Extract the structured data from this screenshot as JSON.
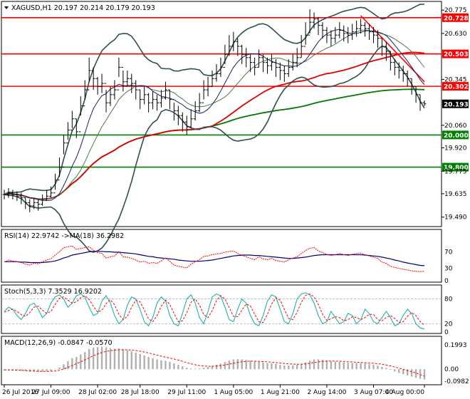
{
  "chart_data": {
    "type": "line",
    "colors": {
      "support": "#008000",
      "resistance": "#ff0000",
      "candle": "#000000",
      "bollinger": "#2f4f4f",
      "ma_short": "#1f1f5f",
      "ma_mid": "#4a7a4a",
      "ma_red": "#e00000",
      "ma_green": "#007a00",
      "rsi": "#ff0000",
      "rsi_ma": "#000080",
      "stoch_main": "#20b2aa",
      "stoch_signal": "#ff0000",
      "macd_hist": "#b0b0b0",
      "macd_signal": "#ff0000"
    },
    "main": {
      "header": "XAGUSD,H1  20.197 20.214 20.179 20.193",
      "menu_icon": "triangle-down-icon",
      "ylim": [
        19.44,
        20.82
      ],
      "y_ticks": [
        "20.775",
        "20.630",
        "20.345",
        "20.060",
        "19.920",
        "19.775",
        "19.635",
        "19.490"
      ],
      "y_tick_values": [
        20.775,
        20.63,
        20.345,
        20.06,
        19.92,
        19.775,
        19.635,
        19.49
      ],
      "levels": [
        {
          "label": "20.728",
          "value": 20.728,
          "kind": "resistance"
        },
        {
          "label": "20.503",
          "value": 20.503,
          "kind": "resistance"
        },
        {
          "label": "20.302",
          "value": 20.302,
          "kind": "resistance"
        },
        {
          "label": "20.000",
          "value": 20.0,
          "kind": "support"
        },
        {
          "label": "19.800",
          "value": 19.8,
          "kind": "support"
        }
      ],
      "current": {
        "label": "20.193",
        "value": 20.193
      },
      "close": [
        19.63,
        19.64,
        19.63,
        19.62,
        19.61,
        19.58,
        19.56,
        19.58,
        19.57,
        19.6,
        19.62,
        19.64,
        19.72,
        19.8,
        19.95,
        20.03,
        20.1,
        20.02,
        20.18,
        20.28,
        20.4,
        20.35,
        20.3,
        20.32,
        20.2,
        20.25,
        20.28,
        20.42,
        20.33,
        20.35,
        20.32,
        20.28,
        20.22,
        20.25,
        20.2,
        20.22,
        20.2,
        20.23,
        20.28,
        20.22,
        20.15,
        20.12,
        20.08,
        20.05,
        20.1,
        20.15,
        20.2,
        20.28,
        20.3,
        20.35,
        20.38,
        20.42,
        20.5,
        20.55,
        20.58,
        20.55,
        20.5,
        20.48,
        20.45,
        20.42,
        20.48,
        20.45,
        20.43,
        20.45,
        20.42,
        20.4,
        20.38,
        20.42,
        20.45,
        20.48,
        20.55,
        20.62,
        20.7,
        20.72,
        20.68,
        20.65,
        20.62,
        20.6,
        20.62,
        20.65,
        20.63,
        20.62,
        20.64,
        20.66,
        20.68,
        20.66,
        20.64,
        20.62,
        20.6,
        20.55,
        20.52,
        20.45,
        20.42,
        20.4,
        20.38,
        20.35,
        20.3,
        20.25,
        20.2,
        20.193
      ],
      "high": [
        19.66,
        19.67,
        19.66,
        19.65,
        19.64,
        19.61,
        19.6,
        19.61,
        19.6,
        19.63,
        19.66,
        19.68,
        19.76,
        19.86,
        20.0,
        20.08,
        20.15,
        20.1,
        20.24,
        20.34,
        20.48,
        20.42,
        20.36,
        20.38,
        20.28,
        20.3,
        20.34,
        20.48,
        20.4,
        20.4,
        20.38,
        20.34,
        20.28,
        20.3,
        20.26,
        20.27,
        20.25,
        20.28,
        20.33,
        20.28,
        20.2,
        20.18,
        20.14,
        20.12,
        20.16,
        20.21,
        20.26,
        20.34,
        20.36,
        20.4,
        20.44,
        20.48,
        20.56,
        20.62,
        20.64,
        20.6,
        20.56,
        20.54,
        20.5,
        20.48,
        20.53,
        20.5,
        20.48,
        20.5,
        20.47,
        20.45,
        20.43,
        20.47,
        20.5,
        20.54,
        20.62,
        20.7,
        20.78,
        20.76,
        20.73,
        20.7,
        20.67,
        20.65,
        20.67,
        20.7,
        20.68,
        20.67,
        20.69,
        20.71,
        20.72,
        20.7,
        20.69,
        20.67,
        20.65,
        20.6,
        20.58,
        20.52,
        20.47,
        20.45,
        20.43,
        20.4,
        20.35,
        20.3,
        20.25,
        20.214
      ],
      "low": [
        19.6,
        19.61,
        19.6,
        19.59,
        19.57,
        19.54,
        19.52,
        19.54,
        19.53,
        19.56,
        19.59,
        19.61,
        19.66,
        19.74,
        19.88,
        19.97,
        20.04,
        19.98,
        20.12,
        20.22,
        20.33,
        20.28,
        20.25,
        20.26,
        20.14,
        20.18,
        20.22,
        20.36,
        20.27,
        20.3,
        20.26,
        20.22,
        20.16,
        20.19,
        20.14,
        20.16,
        20.15,
        20.17,
        20.22,
        20.16,
        20.09,
        20.06,
        20.02,
        20.0,
        20.04,
        20.09,
        20.14,
        20.22,
        20.24,
        20.3,
        20.33,
        20.36,
        20.44,
        20.49,
        20.52,
        20.49,
        20.44,
        20.42,
        20.39,
        20.37,
        20.42,
        20.39,
        20.38,
        20.4,
        20.36,
        20.34,
        20.33,
        20.36,
        20.4,
        20.42,
        20.48,
        20.56,
        20.63,
        20.66,
        20.62,
        20.6,
        20.57,
        20.55,
        20.57,
        20.6,
        20.58,
        20.57,
        20.59,
        20.61,
        20.63,
        20.61,
        20.59,
        20.57,
        20.54,
        20.49,
        20.46,
        20.4,
        20.37,
        20.35,
        20.33,
        20.3,
        20.25,
        20.2,
        20.15,
        20.179
      ]
    },
    "rsi": {
      "header": "RSI(14) 22.9742  ->MA(18) 36.2982",
      "ylim": [
        0,
        100
      ],
      "y_ticks": [
        "70",
        "30",
        "0"
      ],
      "y_tick_values": [
        70,
        30,
        0
      ],
      "values": [
        45,
        50,
        48,
        46,
        44,
        40,
        38,
        42,
        41,
        46,
        50,
        53,
        62,
        70,
        80,
        82,
        84,
        76,
        78,
        80,
        82,
        74,
        68,
        66,
        55,
        58,
        60,
        70,
        58,
        57,
        54,
        50,
        45,
        47,
        42,
        44,
        42,
        48,
        55,
        47,
        38,
        35,
        33,
        31,
        40,
        46,
        51,
        59,
        60,
        63,
        65,
        66,
        69,
        71,
        72,
        66,
        61,
        58,
        54,
        51,
        58,
        53,
        51,
        54,
        49,
        47,
        45,
        51,
        55,
        58,
        66,
        73,
        79,
        80,
        72,
        68,
        64,
        61,
        63,
        66,
        63,
        61,
        64,
        66,
        67,
        63,
        60,
        57,
        54,
        45,
        42,
        35,
        32,
        30,
        28,
        26,
        24,
        23,
        22,
        22.97
      ],
      "ma_values": [
        46,
        46,
        46,
        46,
        45,
        45,
        44,
        44,
        44,
        44,
        45,
        46,
        48,
        51,
        55,
        58,
        62,
        64,
        66,
        68,
        70,
        71,
        71,
        71,
        70,
        70,
        69,
        69,
        68,
        67,
        66,
        65,
        63,
        61,
        59,
        58,
        56,
        55,
        54,
        53,
        52,
        50,
        49,
        48,
        47,
        47,
        47,
        48,
        49,
        50,
        52,
        54,
        56,
        58,
        60,
        61,
        62,
        62,
        62,
        61,
        61,
        60,
        59,
        58,
        57,
        56,
        55,
        54,
        54,
        55,
        56,
        57,
        59,
        61,
        62,
        63,
        63,
        63,
        63,
        63,
        63,
        63,
        63,
        63,
        63,
        62,
        61,
        60,
        59,
        57,
        55,
        53,
        50,
        48,
        45,
        43,
        41,
        39,
        37,
        36.3
      ]
    },
    "stoch": {
      "header": "Stoch(5,3,3) 7.3529 16.9202",
      "ylim": [
        0,
        100
      ],
      "y_ticks": [
        "80",
        "20",
        "0"
      ],
      "y_tick_values": [
        80,
        20,
        0
      ],
      "main": [
        50,
        60,
        55,
        40,
        30,
        45,
        65,
        70,
        55,
        35,
        45,
        70,
        85,
        90,
        80,
        60,
        70,
        88,
        92,
        85,
        60,
        40,
        45,
        75,
        88,
        70,
        40,
        20,
        30,
        65,
        85,
        80,
        55,
        25,
        15,
        35,
        70,
        85,
        75,
        40,
        20,
        15,
        45,
        80,
        90,
        70,
        35,
        20,
        50,
        85,
        92,
        88,
        60,
        30,
        25,
        55,
        80,
        70,
        40,
        20,
        15,
        40,
        75,
        90,
        85,
        55,
        25,
        20,
        45,
        80,
        92,
        95,
        90,
        70,
        40,
        20,
        25,
        50,
        35,
        20,
        25,
        45,
        40,
        20,
        30,
        55,
        45,
        25,
        20,
        35,
        50,
        35,
        15,
        20,
        40,
        55,
        45,
        20,
        10,
        7.35
      ],
      "signal": [
        48,
        52,
        55,
        50,
        42,
        38,
        47,
        60,
        63,
        53,
        45,
        50,
        67,
        82,
        85,
        77,
        70,
        73,
        83,
        88,
        79,
        62,
        48,
        53,
        69,
        78,
        66,
        43,
        30,
        38,
        60,
        77,
        73,
        53,
        32,
        25,
        40,
        63,
        77,
        67,
        45,
        25,
        27,
        47,
        72,
        80,
        65,
        42,
        35,
        52,
        76,
        88,
        80,
        59,
        38,
        37,
        53,
        68,
        63,
        43,
        25,
        23,
        43,
        68,
        83,
        77,
        55,
        33,
        30,
        48,
        72,
        89,
        92,
        85,
        67,
        43,
        28,
        32,
        37,
        35,
        27,
        30,
        37,
        35,
        30,
        35,
        43,
        42,
        30,
        27,
        35,
        40,
        33,
        23,
        25,
        38,
        47,
        40,
        25,
        16.92
      ]
    },
    "macd": {
      "header": "MACD(12,26,9) -0.0847 -0.0570",
      "ylim": [
        -0.115,
        0.245
      ],
      "y_ticks": [
        "0.1993",
        "0.00",
        "-0.0982"
      ],
      "y_tick_values": [
        0.1993,
        0.0,
        -0.0982
      ],
      "hist": [
        -0.01,
        -0.01,
        -0.01,
        -0.012,
        -0.014,
        -0.016,
        -0.02,
        -0.02,
        -0.022,
        -0.02,
        -0.018,
        -0.014,
        -0.002,
        0.015,
        0.04,
        0.065,
        0.09,
        0.1,
        0.12,
        0.14,
        0.165,
        0.175,
        0.18,
        0.183,
        0.178,
        0.172,
        0.168,
        0.17,
        0.162,
        0.155,
        0.146,
        0.136,
        0.124,
        0.112,
        0.1,
        0.09,
        0.08,
        0.072,
        0.068,
        0.06,
        0.048,
        0.036,
        0.024,
        0.012,
        0.006,
        0.004,
        0.006,
        0.012,
        0.018,
        0.026,
        0.036,
        0.046,
        0.058,
        0.07,
        0.08,
        0.082,
        0.08,
        0.076,
        0.07,
        0.062,
        0.06,
        0.055,
        0.05,
        0.048,
        0.042,
        0.036,
        0.03,
        0.03,
        0.032,
        0.036,
        0.044,
        0.056,
        0.07,
        0.08,
        0.08,
        0.077,
        0.072,
        0.066,
        0.062,
        0.06,
        0.056,
        0.052,
        0.05,
        0.05,
        0.05,
        0.047,
        0.042,
        0.036,
        0.03,
        0.02,
        0.01,
        -0.005,
        -0.018,
        -0.03,
        -0.04,
        -0.05,
        -0.06,
        -0.07,
        -0.078,
        -0.0847
      ],
      "signal": [
        -0.005,
        -0.006,
        -0.007,
        -0.008,
        -0.009,
        -0.011,
        -0.013,
        -0.015,
        -0.017,
        -0.018,
        -0.018,
        -0.017,
        -0.014,
        -0.008,
        0.002,
        0.015,
        0.03,
        0.045,
        0.06,
        0.076,
        0.093,
        0.11,
        0.124,
        0.136,
        0.145,
        0.151,
        0.155,
        0.158,
        0.159,
        0.158,
        0.156,
        0.152,
        0.147,
        0.14,
        0.132,
        0.124,
        0.115,
        0.106,
        0.098,
        0.091,
        0.083,
        0.074,
        0.064,
        0.054,
        0.044,
        0.036,
        0.03,
        0.026,
        0.024,
        0.024,
        0.026,
        0.03,
        0.035,
        0.042,
        0.049,
        0.056,
        0.061,
        0.064,
        0.066,
        0.065,
        0.064,
        0.062,
        0.06,
        0.057,
        0.054,
        0.051,
        0.047,
        0.044,
        0.041,
        0.04,
        0.041,
        0.044,
        0.049,
        0.055,
        0.06,
        0.064,
        0.066,
        0.066,
        0.066,
        0.065,
        0.063,
        0.061,
        0.059,
        0.057,
        0.055,
        0.053,
        0.051,
        0.048,
        0.045,
        0.04,
        0.034,
        0.027,
        0.018,
        0.009,
        -0.001,
        -0.011,
        -0.021,
        -0.031,
        -0.044,
        -0.057
      ]
    },
    "x_ticks": [
      "26 Jul 2016",
      "27 Jul 09:00",
      "28 Jul 02:00",
      "28 Jul 18:00",
      "29 Jul 11:00",
      "1 Aug 05:00",
      "1 Aug 21:00",
      "2 Aug 14:00",
      "3 Aug 07:00",
      "4 Aug 00:00"
    ],
    "x_tick_indices": [
      0,
      11,
      22,
      32,
      43,
      54,
      65,
      76,
      87,
      99
    ]
  }
}
